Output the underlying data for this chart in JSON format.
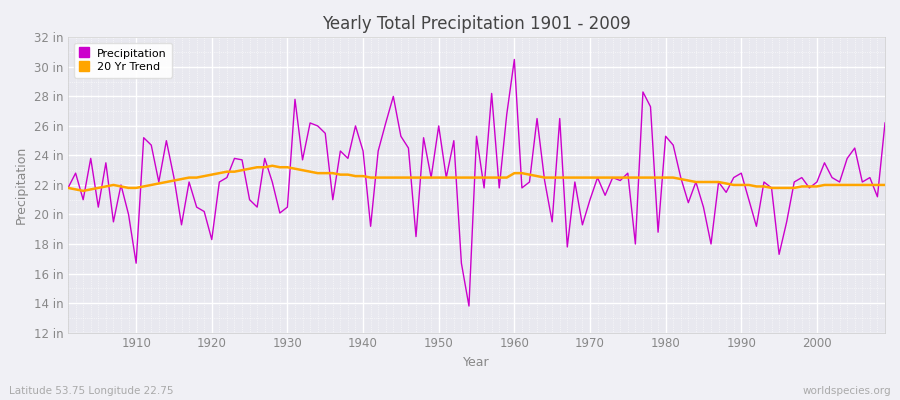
{
  "title": "Yearly Total Precipitation 1901 - 2009",
  "xlabel": "Year",
  "ylabel": "Precipitation",
  "bottom_left_label": "Latitude 53.75 Longitude 22.75",
  "bottom_right_label": "worldspecies.org",
  "years": [
    1901,
    1902,
    1903,
    1904,
    1905,
    1906,
    1907,
    1908,
    1909,
    1910,
    1911,
    1912,
    1913,
    1914,
    1915,
    1916,
    1917,
    1918,
    1919,
    1920,
    1921,
    1922,
    1923,
    1924,
    1925,
    1926,
    1927,
    1928,
    1929,
    1930,
    1931,
    1932,
    1933,
    1934,
    1935,
    1936,
    1937,
    1938,
    1939,
    1940,
    1941,
    1942,
    1943,
    1944,
    1945,
    1946,
    1947,
    1948,
    1949,
    1950,
    1951,
    1952,
    1953,
    1954,
    1955,
    1956,
    1957,
    1958,
    1959,
    1960,
    1961,
    1962,
    1963,
    1964,
    1965,
    1966,
    1967,
    1968,
    1969,
    1970,
    1971,
    1972,
    1973,
    1974,
    1975,
    1976,
    1977,
    1978,
    1979,
    1980,
    1981,
    1982,
    1983,
    1984,
    1985,
    1986,
    1987,
    1988,
    1989,
    1990,
    1991,
    1992,
    1993,
    1994,
    1995,
    1996,
    1997,
    1998,
    1999,
    2000,
    2001,
    2002,
    2003,
    2004,
    2005,
    2006,
    2007,
    2008,
    2009
  ],
  "precip_in": [
    21.8,
    22.8,
    21.0,
    23.8,
    20.5,
    23.5,
    19.5,
    22.0,
    20.0,
    16.7,
    25.2,
    24.7,
    22.2,
    25.0,
    22.5,
    19.3,
    22.2,
    20.5,
    20.2,
    18.3,
    22.2,
    22.5,
    23.8,
    23.7,
    21.0,
    20.5,
    23.8,
    22.2,
    20.1,
    20.5,
    27.8,
    23.7,
    26.2,
    26.0,
    25.5,
    21.0,
    24.3,
    23.8,
    26.0,
    24.3,
    19.2,
    24.3,
    26.2,
    28.0,
    25.3,
    24.5,
    18.5,
    25.2,
    22.5,
    26.0,
    22.5,
    25.0,
    16.7,
    13.8,
    25.3,
    21.8,
    28.2,
    21.8,
    26.8,
    30.5,
    21.8,
    22.2,
    26.5,
    22.3,
    19.5,
    26.5,
    17.8,
    22.2,
    19.3,
    21.0,
    22.5,
    21.3,
    22.5,
    22.3,
    22.8,
    18.0,
    28.3,
    27.3,
    18.8,
    25.3,
    24.7,
    22.5,
    20.8,
    22.2,
    20.5,
    18.0,
    22.2,
    21.5,
    22.5,
    22.8,
    21.0,
    19.2,
    22.2,
    21.8,
    17.3,
    19.5,
    22.2,
    22.5,
    21.8,
    22.2,
    23.5,
    22.5,
    22.2,
    23.8,
    24.5,
    22.2,
    22.5,
    21.2,
    26.2
  ],
  "trend_in": [
    21.8,
    21.7,
    21.6,
    21.7,
    21.8,
    21.9,
    22.0,
    21.9,
    21.8,
    21.8,
    21.9,
    22.0,
    22.1,
    22.2,
    22.3,
    22.4,
    22.5,
    22.5,
    22.6,
    22.7,
    22.8,
    22.9,
    22.9,
    23.0,
    23.1,
    23.2,
    23.2,
    23.3,
    23.2,
    23.2,
    23.1,
    23.0,
    22.9,
    22.8,
    22.8,
    22.8,
    22.7,
    22.7,
    22.6,
    22.6,
    22.5,
    22.5,
    22.5,
    22.5,
    22.5,
    22.5,
    22.5,
    22.5,
    22.5,
    22.5,
    22.5,
    22.5,
    22.5,
    22.5,
    22.5,
    22.5,
    22.5,
    22.5,
    22.5,
    22.8,
    22.8,
    22.7,
    22.6,
    22.5,
    22.5,
    22.5,
    22.5,
    22.5,
    22.5,
    22.5,
    22.5,
    22.5,
    22.5,
    22.5,
    22.5,
    22.5,
    22.5,
    22.5,
    22.5,
    22.5,
    22.5,
    22.4,
    22.3,
    22.2,
    22.2,
    22.2,
    22.2,
    22.1,
    22.0,
    22.0,
    22.0,
    21.9,
    21.9,
    21.8,
    21.8,
    21.8,
    21.8,
    21.9,
    21.9,
    21.9,
    22.0,
    22.0,
    22.0,
    22.0,
    22.0,
    22.0,
    22.0,
    22.0,
    22.0
  ],
  "precip_color": "#cc00cc",
  "trend_color": "#ffa500",
  "background_color": "#f0f0f5",
  "plot_bg_color": "#e8e8ef",
  "grid_color": "#ffffff",
  "title_color": "#444444",
  "label_color": "#888888",
  "ylim": [
    12,
    32
  ],
  "yticks": [
    12,
    14,
    16,
    18,
    20,
    22,
    24,
    26,
    28,
    30,
    32
  ],
  "xlim": [
    1901,
    2009
  ],
  "xticks": [
    1910,
    1920,
    1930,
    1940,
    1950,
    1960,
    1970,
    1980,
    1990,
    2000
  ]
}
